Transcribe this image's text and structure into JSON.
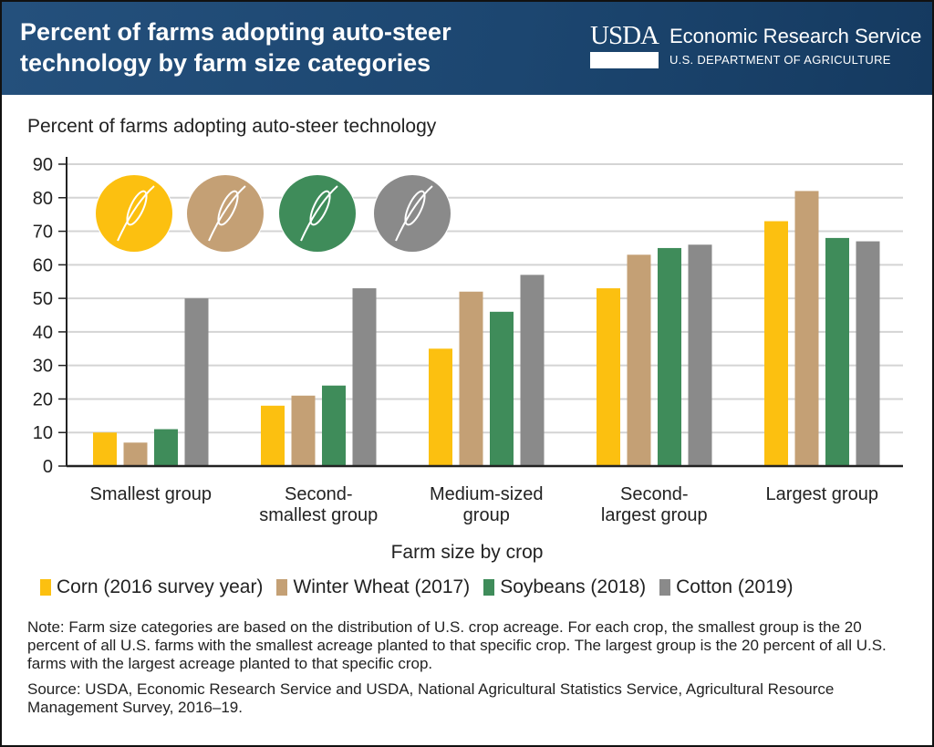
{
  "header": {
    "title": "Percent of farms adopting auto-steer technology by farm size categories",
    "logo_text": "USDA",
    "agency": "Economic Research Service",
    "department": "U.S. DEPARTMENT OF AGRICULTURE",
    "color": "#1f4a75"
  },
  "chart_data": {
    "type": "bar",
    "title": "Percent of farms adopting auto-steer technology by farm size categories",
    "ylabel": "Percent of farms adopting auto-steer technology",
    "xlabel": "Farm size by crop",
    "ylim": [
      0,
      90
    ],
    "yticks": [
      "0",
      "10",
      "20",
      "30",
      "40",
      "50",
      "60",
      "70",
      "80",
      "90"
    ],
    "grid": true,
    "legend_position": "bottom",
    "categories": [
      "Smallest group",
      "Second-smallest group",
      "Medium-sized group",
      "Second-largest group",
      "Largest group"
    ],
    "category_lines": [
      [
        "Smallest group"
      ],
      [
        "Second-",
        "smallest group"
      ],
      [
        "Medium-sized",
        "group"
      ],
      [
        "Second-",
        "largest group"
      ],
      [
        "Largest group"
      ]
    ],
    "series": [
      {
        "name": "Corn (2016 survey year)",
        "color": "#fcc010",
        "icon": "corn-icon",
        "values": [
          10,
          18,
          35,
          53,
          73
        ]
      },
      {
        "name": "Winter Wheat (2017)",
        "color": "#c4a075",
        "icon": "wheat-icon",
        "values": [
          7,
          21,
          52,
          63,
          82
        ]
      },
      {
        "name": "Soybeans (2018)",
        "color": "#3f8c5a",
        "icon": "soybean-icon",
        "values": [
          11,
          24,
          46,
          65,
          68
        ]
      },
      {
        "name": "Cotton (2019)",
        "color": "#8a8a8a",
        "icon": "cotton-icon",
        "values": [
          50,
          53,
          57,
          66,
          67
        ]
      }
    ]
  },
  "note": "Note: Farm size categories are based on the distribution of U.S. crop acreage. For each crop, the smallest group is the 20 percent of all U.S. farms with the smallest acreage planted to that specific crop. The largest group is the 20 percent of all U.S. farms with the largest acreage planted to that specific crop.",
  "source": "Source: USDA, Economic Research Service and USDA, National Agricultural Statistics Service, Agricultural Resource Management Survey, 2016–19."
}
